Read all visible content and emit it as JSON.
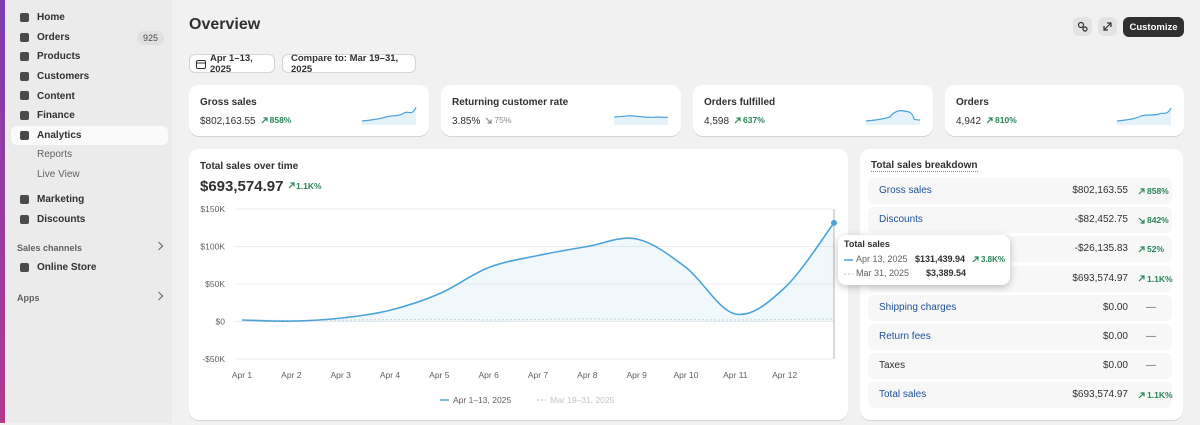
{
  "sidebar": {
    "nav": [
      [
        {
          "label": "Home"
        },
        {
          "label": "Orders",
          "badge": "925"
        },
        {
          "label": "Products"
        },
        {
          "label": "Customers"
        },
        {
          "label": "Content"
        },
        {
          "label": "Finance"
        },
        {
          "label": "Analytics",
          "active": true,
          "children": [
            "Reports",
            "Live View"
          ]
        }
      ],
      [
        {
          "label": "Marketing"
        },
        {
          "label": "Discounts"
        }
      ]
    ],
    "sections": [
      {
        "title": "Sales channels",
        "items": [
          "Online Store"
        ]
      },
      {
        "title": "Apps",
        "items": []
      }
    ]
  },
  "header": {
    "title": "Overview",
    "customize": "Customize"
  },
  "filters": {
    "date": "Apr 1–13, 2025",
    "compare": "Compare to: Mar 19–31, 2025"
  },
  "metrics": [
    {
      "label": "Gross sales",
      "value": "$802,163.55",
      "change": "858%",
      "direction": "up"
    },
    {
      "label": "Returning customer rate",
      "value": "3.85%",
      "change": "75%",
      "direction": "down"
    },
    {
      "label": "Orders fulfilled",
      "value": "4,598",
      "change": "637%",
      "direction": "up"
    },
    {
      "label": "Orders",
      "value": "4,942",
      "change": "810%",
      "direction": "up"
    }
  ],
  "chart_data": {
    "type": "line",
    "title": "Total sales over time",
    "total": "$693,574.97",
    "change": "1.1K%",
    "categories": [
      "Apr 1",
      "Apr 2",
      "Apr 3",
      "Apr 4",
      "Apr 5",
      "Apr 6",
      "Apr 7",
      "Apr 8",
      "Apr 9",
      "Apr 10",
      "Apr 11",
      "Apr 12",
      null
    ],
    "series": [
      {
        "name": "Apr 1–13, 2025",
        "color": "#4ba3d9",
        "values": [
          2000,
          500,
          4500,
          15000,
          37000,
          72000,
          88000,
          100000,
          110000,
          72000,
          10000,
          45000,
          131439.94
        ]
      },
      {
        "name": "Mar 19–31, 2025",
        "color": "#c9d6df",
        "dashed": true,
        "values": [
          2000,
          1500,
          1800,
          2500,
          3000,
          2200,
          2800,
          3500,
          3000,
          2500,
          2000,
          2800,
          3389.54
        ]
      }
    ],
    "ylim": [
      -50000,
      150000
    ],
    "yticks": [
      {
        "value": -50000,
        "label": "-$50K"
      },
      {
        "value": 0,
        "label": "$0"
      },
      {
        "value": 50000,
        "label": "$50K"
      },
      {
        "value": 100000,
        "label": "$100K"
      },
      {
        "value": 150000,
        "label": "$150K"
      }
    ],
    "grid": true,
    "tooltip": {
      "title": "Total sales",
      "rows": [
        {
          "date": "Apr 13, 2025",
          "value": "$131,439.94",
          "change": "3.8K%"
        },
        {
          "date": "Mar 31, 2025",
          "value": "$3,389.54"
        }
      ]
    }
  },
  "breakdown": {
    "title": "Total sales breakdown",
    "rows": [
      {
        "label": "Gross sales",
        "value": "$802,163.55",
        "change": "858%",
        "direction": "up",
        "link": true
      },
      {
        "label": "Discounts",
        "value": "-$82,452.75",
        "change": "842%",
        "direction": "down",
        "link": true
      },
      {
        "value": "-$26,135.83",
        "change": "52%",
        "direction": "up",
        "link": true
      },
      {
        "value": "$693,574.97",
        "change": "1.1K%",
        "direction": "up",
        "link": true
      },
      {
        "label": "Shipping charges",
        "value": "$0.00",
        "change": "—",
        "link": true
      },
      {
        "label": "Return fees",
        "value": "$0.00",
        "change": "—",
        "link": true
      },
      {
        "label": "Taxes",
        "value": "$0.00",
        "change": "—"
      },
      {
        "label": "Total sales",
        "value": "$693,574.97",
        "change": "1.1K%",
        "direction": "up",
        "link": true
      }
    ]
  }
}
